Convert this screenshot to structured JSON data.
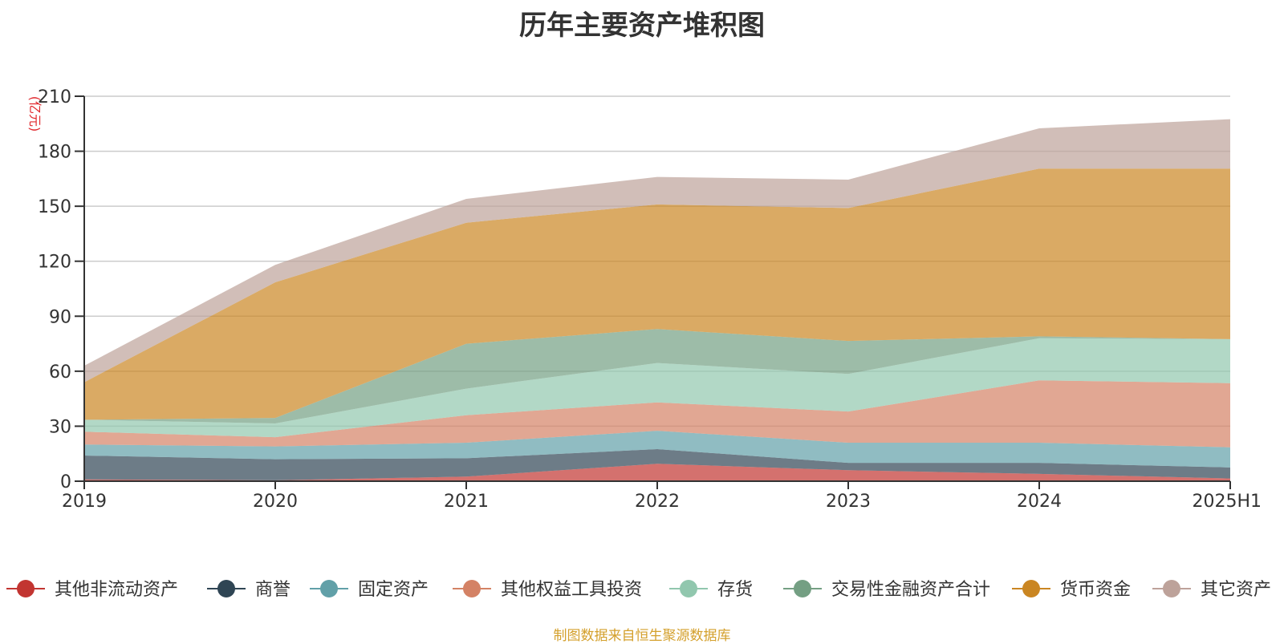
{
  "chart_data": {
    "type": "area",
    "title": "历年主要资产堆积图",
    "ylabel": "(亿元)",
    "xlabel": "",
    "stacked": true,
    "categories": [
      "2019",
      "2020",
      "2021",
      "2022",
      "2023",
      "2024",
      "2025H1"
    ],
    "ylim": [
      0,
      210
    ],
    "yticks": [
      0,
      30,
      60,
      90,
      120,
      150,
      180,
      210
    ],
    "grid": true,
    "legend_position": "bottom",
    "series": [
      {
        "name": "其他非流动资产",
        "color": "#c23531",
        "values": [
          1,
          0.5,
          2.5,
          9.5,
          6,
          4,
          1.5
        ]
      },
      {
        "name": "商誉",
        "color": "#2f4554",
        "values": [
          13,
          11.5,
          10,
          8,
          4,
          6,
          6
        ]
      },
      {
        "name": "固定资产",
        "color": "#61a0a8",
        "values": [
          6,
          7,
          8.5,
          10,
          11,
          11,
          11
        ]
      },
      {
        "name": "其他权益工具投资",
        "color": "#d48265",
        "values": [
          7,
          5,
          15,
          15.5,
          17,
          34,
          35
        ]
      },
      {
        "name": "存货",
        "color": "#91c7ae",
        "values": [
          6.5,
          7.5,
          14.5,
          21.5,
          20.5,
          23,
          24
        ]
      },
      {
        "name": "交易性金融资产合计",
        "color": "#749f83",
        "values": [
          0,
          3,
          24.5,
          18.5,
          18,
          1,
          0
        ]
      },
      {
        "name": "货币资金",
        "color": "#ca8622",
        "values": [
          20.5,
          74,
          66,
          68,
          72.5,
          91.5,
          93
        ]
      },
      {
        "name": "其它资产",
        "color": "#bda29a",
        "values": [
          9,
          9.5,
          13,
          15,
          15.5,
          22,
          27
        ]
      }
    ]
  },
  "footer": {
    "source": "制图数据来自恒生聚源数据库"
  }
}
